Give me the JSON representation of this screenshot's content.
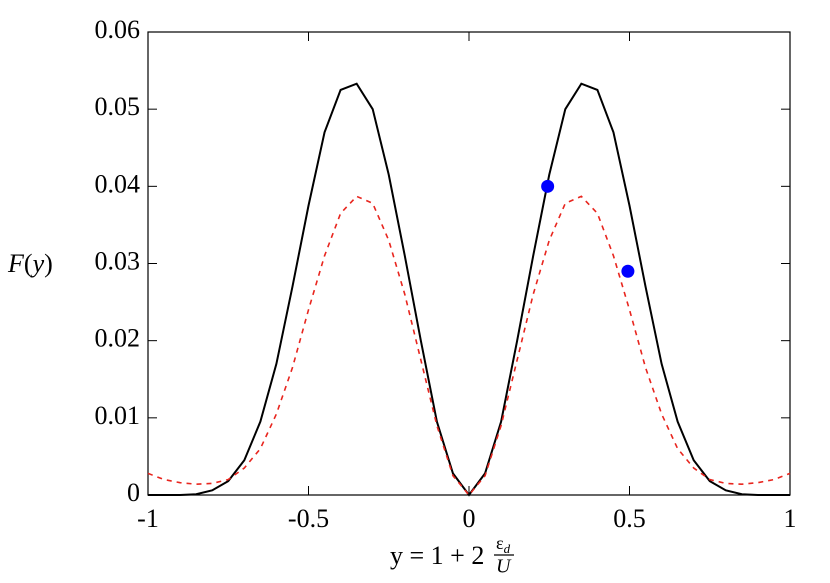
{
  "chart_data": {
    "type": "line",
    "y_label": {
      "name": "F",
      "open": "(",
      "var": "y",
      "close": ")"
    },
    "x_label": {
      "prefix": "y = 1 + 2",
      "numerator": "ε",
      "subscript": "d",
      "denominator": "U"
    },
    "xlim": [
      -1,
      1
    ],
    "ylim": [
      0,
      0.06
    ],
    "xticks": [
      -1,
      -0.5,
      0,
      0.5,
      1
    ],
    "yticks": [
      0,
      0.01,
      0.02,
      0.03,
      0.04,
      0.05,
      0.06
    ],
    "grid": false,
    "x": [
      -1,
      -0.95,
      -0.9,
      -0.85,
      -0.8,
      -0.75,
      -0.7,
      -0.65,
      -0.6,
      -0.55,
      -0.5,
      -0.45,
      -0.4,
      -0.35,
      -0.3,
      -0.25,
      -0.2,
      -0.15,
      -0.1,
      -0.05,
      0,
      0.05,
      0.1,
      0.15,
      0.2,
      0.25,
      0.3,
      0.35,
      0.4,
      0.45,
      0.5,
      0.55,
      0.6,
      0.65,
      0.7,
      0.75,
      0.8,
      0.85,
      0.9,
      0.95,
      1
    ],
    "series": [
      {
        "color": "#000000",
        "line_style": "solid",
        "values": [
          0,
          0,
          0,
          0.0001,
          0.0006,
          0.0018,
          0.0045,
          0.0095,
          0.017,
          0.027,
          0.0375,
          0.047,
          0.0525,
          0.0533,
          0.05,
          0.0415,
          0.031,
          0.02,
          0.0095,
          0.0028,
          0,
          0.0028,
          0.0095,
          0.02,
          0.031,
          0.0415,
          0.05,
          0.0533,
          0.0525,
          0.047,
          0.0375,
          0.027,
          0.017,
          0.0095,
          0.0045,
          0.0018,
          0.0006,
          0.0001,
          0,
          0,
          0
        ]
      },
      {
        "color": "#e8251e",
        "line_style": "dashed",
        "values": [
          0.0028,
          0.002,
          0.0016,
          0.0014,
          0.0015,
          0.002,
          0.0035,
          0.006,
          0.0105,
          0.0165,
          0.024,
          0.031,
          0.0365,
          0.0387,
          0.0378,
          0.033,
          0.026,
          0.0175,
          0.009,
          0.0025,
          0,
          0.0025,
          0.009,
          0.0175,
          0.026,
          0.033,
          0.0378,
          0.0387,
          0.0365,
          0.031,
          0.024,
          0.0165,
          0.0105,
          0.006,
          0.0035,
          0.002,
          0.0015,
          0.0014,
          0.0016,
          0.002,
          0.0028
        ]
      }
    ],
    "points": {
      "color": "#0000ff",
      "x": [
        0.245,
        0.495
      ],
      "values": [
        0.04,
        0.029
      ]
    }
  }
}
